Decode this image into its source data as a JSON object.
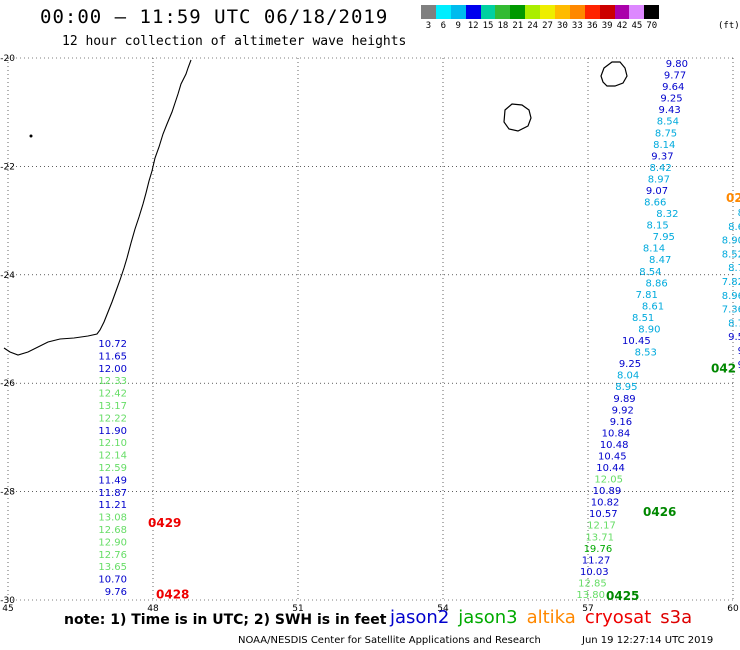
{
  "header": {
    "title": "00:00 – 11:59 UTC 06/18/2019",
    "subtitle": "12 hour collection of altimeter wave heights"
  },
  "color_scale": {
    "unit": "(ft)",
    "labels": [
      "3",
      "6",
      "9",
      "12",
      "15",
      "18",
      "21",
      "24",
      "27",
      "30",
      "33",
      "36",
      "39",
      "42",
      "45",
      "70"
    ],
    "colors": [
      "#808080",
      "#00eeff",
      "#00bbee",
      "#0000ee",
      "#00d0a0",
      "#33bb33",
      "#009900",
      "#aaee00",
      "#eeee00",
      "#ffbb00",
      "#ff8800",
      "#ff2200",
      "#cc0000",
      "#aa00aa",
      "#dd88ff",
      "#000000"
    ]
  },
  "map": {
    "lat_labels": [
      "-20",
      "-22",
      "-24",
      "-26",
      "-28",
      "-30"
    ],
    "lon_labels": [
      "45",
      "48",
      "51",
      "54",
      "57",
      "60"
    ],
    "lat_values": [
      -20,
      -22,
      -24,
      -26,
      -28,
      -30
    ],
    "lon_values": [
      45,
      48,
      51,
      54,
      57,
      60
    ]
  },
  "satellite_colors": {
    "jason2": "#0000cc",
    "jason3": "#00aa00",
    "jason3_light": "#66dd66",
    "cyan": "#00aadd",
    "altika": "#ff8800",
    "cryosat": "#ee0000",
    "s3a": "#dd0000",
    "time_green": "#008800"
  },
  "tracks": {
    "west": {
      "readings": [
        {
          "v": "10.72",
          "c": "jason2"
        },
        {
          "v": "11.65",
          "c": "jason2"
        },
        {
          "v": "12.00",
          "c": "jason2"
        },
        {
          "v": "12.33",
          "c": "jason3_light"
        },
        {
          "v": "12.42",
          "c": "jason3_light"
        },
        {
          "v": "13.17",
          "c": "jason3_light"
        },
        {
          "v": "12.22",
          "c": "jason3_light"
        },
        {
          "v": "11.90",
          "c": "jason2"
        },
        {
          "v": "12.10",
          "c": "jason3_light"
        },
        {
          "v": "12.14",
          "c": "jason3_light"
        },
        {
          "v": "12.59",
          "c": "jason3_light"
        },
        {
          "v": "11.49",
          "c": "jason2"
        },
        {
          "v": "11.87",
          "c": "jason2"
        },
        {
          "v": "11.21",
          "c": "jason2"
        },
        {
          "v": "13.08",
          "c": "jason3_light"
        },
        {
          "v": "12.68",
          "c": "jason3_light"
        },
        {
          "v": "12.90",
          "c": "jason3_light"
        },
        {
          "v": "12.76",
          "c": "jason3_light"
        },
        {
          "v": "13.65",
          "c": "jason3_light"
        },
        {
          "v": "10.70",
          "c": "jason2"
        },
        {
          "v": "9.76",
          "c": "jason2"
        }
      ],
      "time_labels": [
        {
          "t": "0429",
          "lat": -28.58,
          "c": "cryosat"
        },
        {
          "t": "0428",
          "lat": -29.9,
          "c": "cryosat"
        }
      ]
    },
    "east_upper": {
      "readings": [
        {
          "v": "9.80",
          "c": "jason2"
        },
        {
          "v": "9.77",
          "c": "jason2"
        },
        {
          "v": "9.64",
          "c": "jason2"
        },
        {
          "v": "9.25",
          "c": "jason2"
        },
        {
          "v": "9.43",
          "c": "jason2"
        },
        {
          "v": "8.54",
          "c": "cyan"
        },
        {
          "v": "8.75",
          "c": "cyan"
        },
        {
          "v": "8.14",
          "c": "cyan"
        },
        {
          "v": "9.37",
          "c": "jason2"
        },
        {
          "v": "8.42",
          "c": "cyan"
        },
        {
          "v": "8.97",
          "c": "cyan"
        },
        {
          "v": "9.07",
          "c": "jason2"
        },
        {
          "v": "8.66",
          "c": "cyan"
        },
        {
          "v": "8.32",
          "c": "cyan"
        },
        {
          "v": "8.15",
          "c": "cyan"
        },
        {
          "v": "7.95",
          "c": "cyan"
        },
        {
          "v": "8.14",
          "c": "cyan"
        },
        {
          "v": "8.47",
          "c": "cyan"
        },
        {
          "v": "8.54",
          "c": "cyan"
        },
        {
          "v": "8.86",
          "c": "cyan"
        },
        {
          "v": "7.81",
          "c": "cyan"
        },
        {
          "v": "8.61",
          "c": "cyan"
        },
        {
          "v": "8.51",
          "c": "cyan"
        },
        {
          "v": "8.90",
          "c": "cyan"
        },
        {
          "v": "10.45",
          "c": "jason2"
        },
        {
          "v": "8.53",
          "c": "cyan"
        },
        {
          "v": "9.25",
          "c": "jason2"
        },
        {
          "v": "8.04",
          "c": "cyan"
        },
        {
          "v": "8.95",
          "c": "cyan"
        },
        {
          "v": "9.89",
          "c": "jason2"
        },
        {
          "v": "9.92",
          "c": "jason2"
        },
        {
          "v": "9.16",
          "c": "jason2"
        },
        {
          "v": "10.84",
          "c": "jason2"
        },
        {
          "v": "10.48",
          "c": "jason2"
        },
        {
          "v": "10.45",
          "c": "jason2"
        },
        {
          "v": "10.44",
          "c": "jason2"
        },
        {
          "v": "12.05",
          "c": "jason3_light"
        },
        {
          "v": "10.89",
          "c": "jason2"
        },
        {
          "v": "10.82",
          "c": "jason2"
        },
        {
          "v": "10.57",
          "c": "jason2"
        },
        {
          "v": "12.17",
          "c": "jason3_light"
        },
        {
          "v": "13.71",
          "c": "jason3_light"
        },
        {
          "v": "19.76",
          "c": "jason3"
        },
        {
          "v": "11.27",
          "c": "jason2"
        },
        {
          "v": "10.03",
          "c": "jason2"
        },
        {
          "v": "12.85",
          "c": "jason3_light"
        },
        {
          "v": "13.80",
          "c": "jason3_light"
        }
      ],
      "time_labels": [
        {
          "t": "0426",
          "lat": -28.38,
          "c": "time_green"
        },
        {
          "t": "0425",
          "lat": -29.93,
          "c": "time_green"
        },
        {
          "t": "042",
          "lat": -25.73,
          "c": "time_green"
        },
        {
          "t": "02",
          "lat": -22.58,
          "c": "altika"
        }
      ]
    },
    "east_edge": {
      "readings": [
        {
          "v": "8",
          "c": "cyan"
        },
        {
          "v": "8.6",
          "c": "cyan"
        },
        {
          "v": "8.90",
          "c": "cyan"
        },
        {
          "v": "8.52",
          "c": "cyan"
        },
        {
          "v": "8.7",
          "c": "cyan"
        },
        {
          "v": "7.82",
          "c": "cyan"
        },
        {
          "v": "8.96",
          "c": "cyan"
        },
        {
          "v": "7.36",
          "c": "cyan"
        },
        {
          "v": "8.7",
          "c": "cyan"
        },
        {
          "v": "9.5",
          "c": "jason2"
        },
        {
          "v": "9",
          "c": "jason2"
        },
        {
          "v": "9",
          "c": "jason2"
        }
      ]
    }
  },
  "legend": {
    "note": "note:  1) Time is in UTC;  2) SWH is in feet",
    "items": [
      {
        "label": "jason2",
        "c": "jason2"
      },
      {
        "label": "jason3",
        "c": "jason3"
      },
      {
        "label": "altika",
        "c": "altika"
      },
      {
        "label": "cryosat",
        "c": "cryosat"
      },
      {
        "label": "s3a",
        "c": "s3a"
      }
    ]
  },
  "footer": {
    "credit": "NOAA/NESDIS Center for Satellite Applications and Research",
    "timestamp": "Jun 19 12:27:14 UTC 2019"
  }
}
